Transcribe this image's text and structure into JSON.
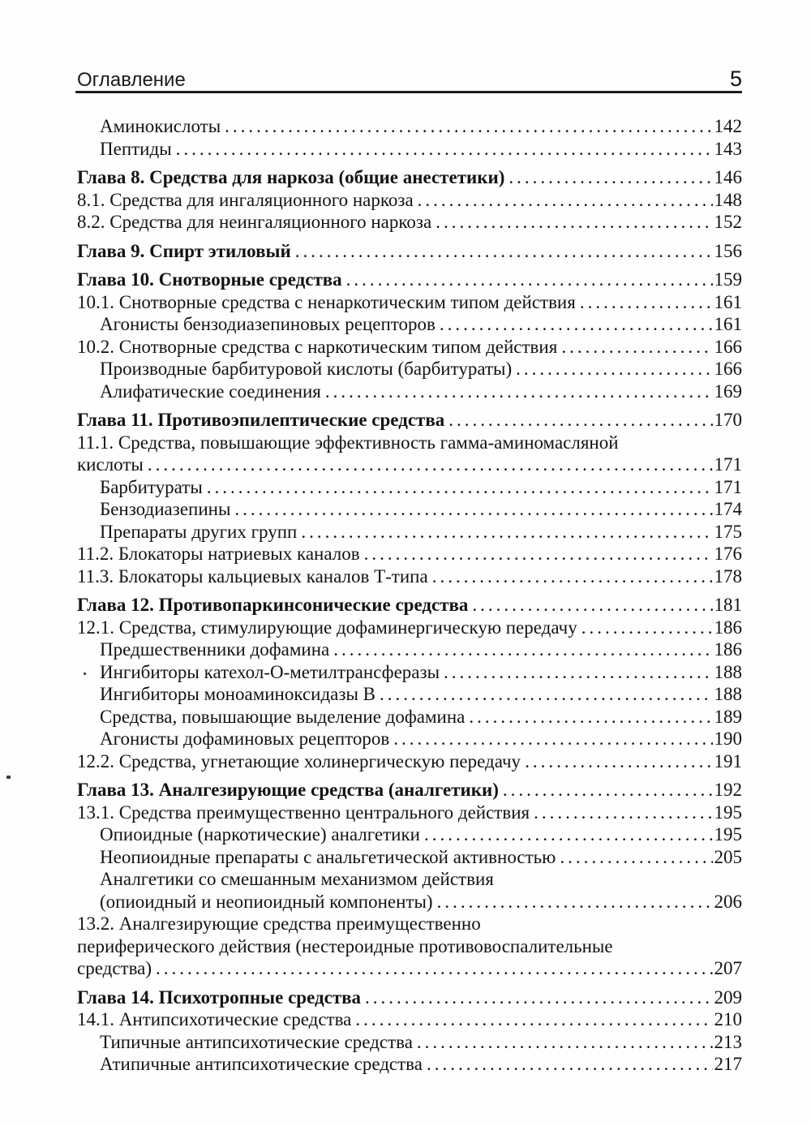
{
  "header": {
    "title": "Оглавление",
    "page_number": "5"
  },
  "toc": {
    "entries": [
      {
        "indent": 1,
        "bold": false,
        "lines": [
          "Аминокислоты"
        ],
        "page": "142"
      },
      {
        "indent": 1,
        "bold": false,
        "lines": [
          "Пептиды"
        ],
        "page": "143"
      },
      {
        "indent": 0,
        "bold": true,
        "lines": [
          "Глава 8. Средства для наркоза (общие анестетики)"
        ],
        "page": "146"
      },
      {
        "indent": 0,
        "bold": false,
        "lines": [
          "8.1. Средства для ингаляционного наркоза"
        ],
        "page": "148"
      },
      {
        "indent": 0,
        "bold": false,
        "lines": [
          "8.2. Средства для неингаляционного наркоза"
        ],
        "page": "152"
      },
      {
        "indent": 0,
        "bold": true,
        "lines": [
          "Глава 9. Спирт этиловый"
        ],
        "page": "156"
      },
      {
        "indent": 0,
        "bold": true,
        "lines": [
          "Глава 10. Снотворные средства"
        ],
        "page": "159"
      },
      {
        "indent": 0,
        "bold": false,
        "lines": [
          "10.1. Снотворные средства с ненаркотическим типом действия"
        ],
        "page": "161"
      },
      {
        "indent": 1,
        "bold": false,
        "lines": [
          "Агонисты бензодиазепиновых рецепторов"
        ],
        "page": "161"
      },
      {
        "indent": 0,
        "bold": false,
        "lines": [
          "10.2. Снотворные средства с наркотическим типом действия"
        ],
        "page": "166"
      },
      {
        "indent": 1,
        "bold": false,
        "lines": [
          "Производные барбитуровой кислоты (барбитураты)"
        ],
        "page": "166"
      },
      {
        "indent": 1,
        "bold": false,
        "lines": [
          "Алифатические соединения"
        ],
        "page": "169"
      },
      {
        "indent": 0,
        "bold": true,
        "lines": [
          "Глава 11. Противоэпилептические средства"
        ],
        "page": "170"
      },
      {
        "indent": 0,
        "bold": false,
        "lines": [
          "11.1. Средства, повышающие эффективность гамма-аминомасляной",
          "кислоты"
        ],
        "page": "171"
      },
      {
        "indent": 1,
        "bold": false,
        "lines": [
          "Барбитураты"
        ],
        "page": "171"
      },
      {
        "indent": 1,
        "bold": false,
        "lines": [
          "Бензодиазепины"
        ],
        "page": "174"
      },
      {
        "indent": 1,
        "bold": false,
        "lines": [
          "Препараты других групп"
        ],
        "page": "175"
      },
      {
        "indent": 0,
        "bold": false,
        "lines": [
          "11.2. Блокаторы натриевых каналов"
        ],
        "page": "176"
      },
      {
        "indent": 0,
        "bold": false,
        "lines": [
          "11.3. Блокаторы кальциевых каналов Т-типа"
        ],
        "page": "178"
      },
      {
        "indent": 0,
        "bold": true,
        "lines": [
          "Глава 12. Противопаркинсонические средства"
        ],
        "page": "181"
      },
      {
        "indent": 0,
        "bold": false,
        "lines": [
          "12.1. Средства, стимулирующие дофаминергическую передачу"
        ],
        "page": "186"
      },
      {
        "indent": 1,
        "bold": false,
        "lines": [
          "Предшественники дофамина"
        ],
        "page": "186"
      },
      {
        "indent": 1,
        "bold": false,
        "lines": [
          "Ингибиторы катехол-О-метилтрансферазы"
        ],
        "page": "188"
      },
      {
        "indent": 1,
        "bold": false,
        "lines": [
          "Ингибиторы моноаминоксидазы В"
        ],
        "page": "188"
      },
      {
        "indent": 1,
        "bold": false,
        "lines": [
          "Средства, повышающие выделение дофамина"
        ],
        "page": "189"
      },
      {
        "indent": 1,
        "bold": false,
        "lines": [
          "Агонисты дофаминовых рецепторов"
        ],
        "page": "190"
      },
      {
        "indent": 0,
        "bold": false,
        "lines": [
          "12.2. Средства, угнетающие холинергическую передачу"
        ],
        "page": "191"
      },
      {
        "indent": 0,
        "bold": true,
        "lines": [
          "Глава 13. Аналгезирующие средства (аналгетики)"
        ],
        "page": "192"
      },
      {
        "indent": 0,
        "bold": false,
        "lines": [
          "13.1. Средства преимущественно центрального действия"
        ],
        "page": "195"
      },
      {
        "indent": 1,
        "bold": false,
        "lines": [
          "Опиоидные (наркотические) аналгетики"
        ],
        "page": "195"
      },
      {
        "indent": 1,
        "bold": false,
        "lines": [
          "Неопиоидные препараты с анальгетической активностью"
        ],
        "page": "205"
      },
      {
        "indent": 1,
        "bold": false,
        "lines": [
          "Аналгетики со смешанным механизмом действия",
          "(опиоидный и неопиоидный компоненты)"
        ],
        "page": "206"
      },
      {
        "indent": 0,
        "bold": false,
        "lines": [
          "13.2. Аналгезирующие средства преимущественно",
          "периферического действия (нестероидные противовоспалительные",
          "средства)"
        ],
        "page": "207"
      },
      {
        "indent": 0,
        "bold": true,
        "lines": [
          "Глава 14. Психотропные средства"
        ],
        "page": "209"
      },
      {
        "indent": 0,
        "bold": false,
        "lines": [
          "14.1. Антипсихотические средства"
        ],
        "page": "210"
      },
      {
        "indent": 1,
        "bold": false,
        "lines": [
          "Типичные антипсихотические средства"
        ],
        "page": "213"
      },
      {
        "indent": 1,
        "bold": false,
        "lines": [
          "Атипичные антипсихотические средства"
        ],
        "page": "217"
      }
    ]
  },
  "colors": {
    "background": "#fefefe",
    "text": "#131313",
    "rule": "#1c1c1c"
  }
}
